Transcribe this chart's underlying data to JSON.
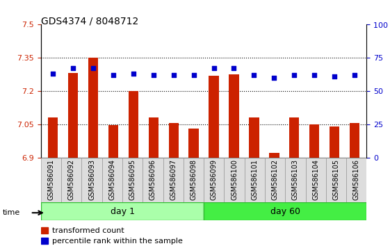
{
  "title": "GDS4374 / 8048712",
  "samples": [
    "GSM586091",
    "GSM586092",
    "GSM586093",
    "GSM586094",
    "GSM586095",
    "GSM586096",
    "GSM586097",
    "GSM586098",
    "GSM586099",
    "GSM586100",
    "GSM586101",
    "GSM586102",
    "GSM586103",
    "GSM586104",
    "GSM586105",
    "GSM586106"
  ],
  "red_values": [
    7.08,
    7.28,
    7.35,
    7.046,
    7.2,
    7.08,
    7.055,
    7.03,
    7.27,
    7.275,
    7.08,
    6.92,
    7.08,
    7.05,
    7.04,
    7.055
  ],
  "blue_values": [
    63,
    67,
    67,
    62,
    63,
    62,
    62,
    62,
    67,
    67,
    62,
    60,
    62,
    62,
    61,
    62
  ],
  "ylim_left": [
    6.9,
    7.5
  ],
  "ylim_right": [
    0,
    100
  ],
  "yticks_left": [
    6.9,
    7.05,
    7.2,
    7.35,
    7.5
  ],
  "yticks_right": [
    0,
    25,
    50,
    75,
    100
  ],
  "ytick_labels_left": [
    "6.9",
    "7.05",
    "7.2",
    "7.35",
    "7.5"
  ],
  "ytick_labels_right": [
    "0",
    "25",
    "50",
    "75",
    "100 ■"
  ],
  "hlines": [
    7.05,
    7.2,
    7.35
  ],
  "day1_samples": 8,
  "day60_samples": 8,
  "day1_label": "day 1",
  "day60_label": "day 60",
  "bar_color": "#cc2200",
  "dot_color": "#0000cc",
  "day1_color": "#aaffaa",
  "day60_color": "#44ee44",
  "time_label": "time",
  "legend_red": "transformed count",
  "legend_blue": "percentile rank within the sample",
  "bg_color": "#ffffff",
  "plot_bg": "#ffffff",
  "tick_color_left": "#cc2200",
  "tick_color_right": "#0000cc",
  "bar_width": 0.5,
  "base_value": 6.9
}
